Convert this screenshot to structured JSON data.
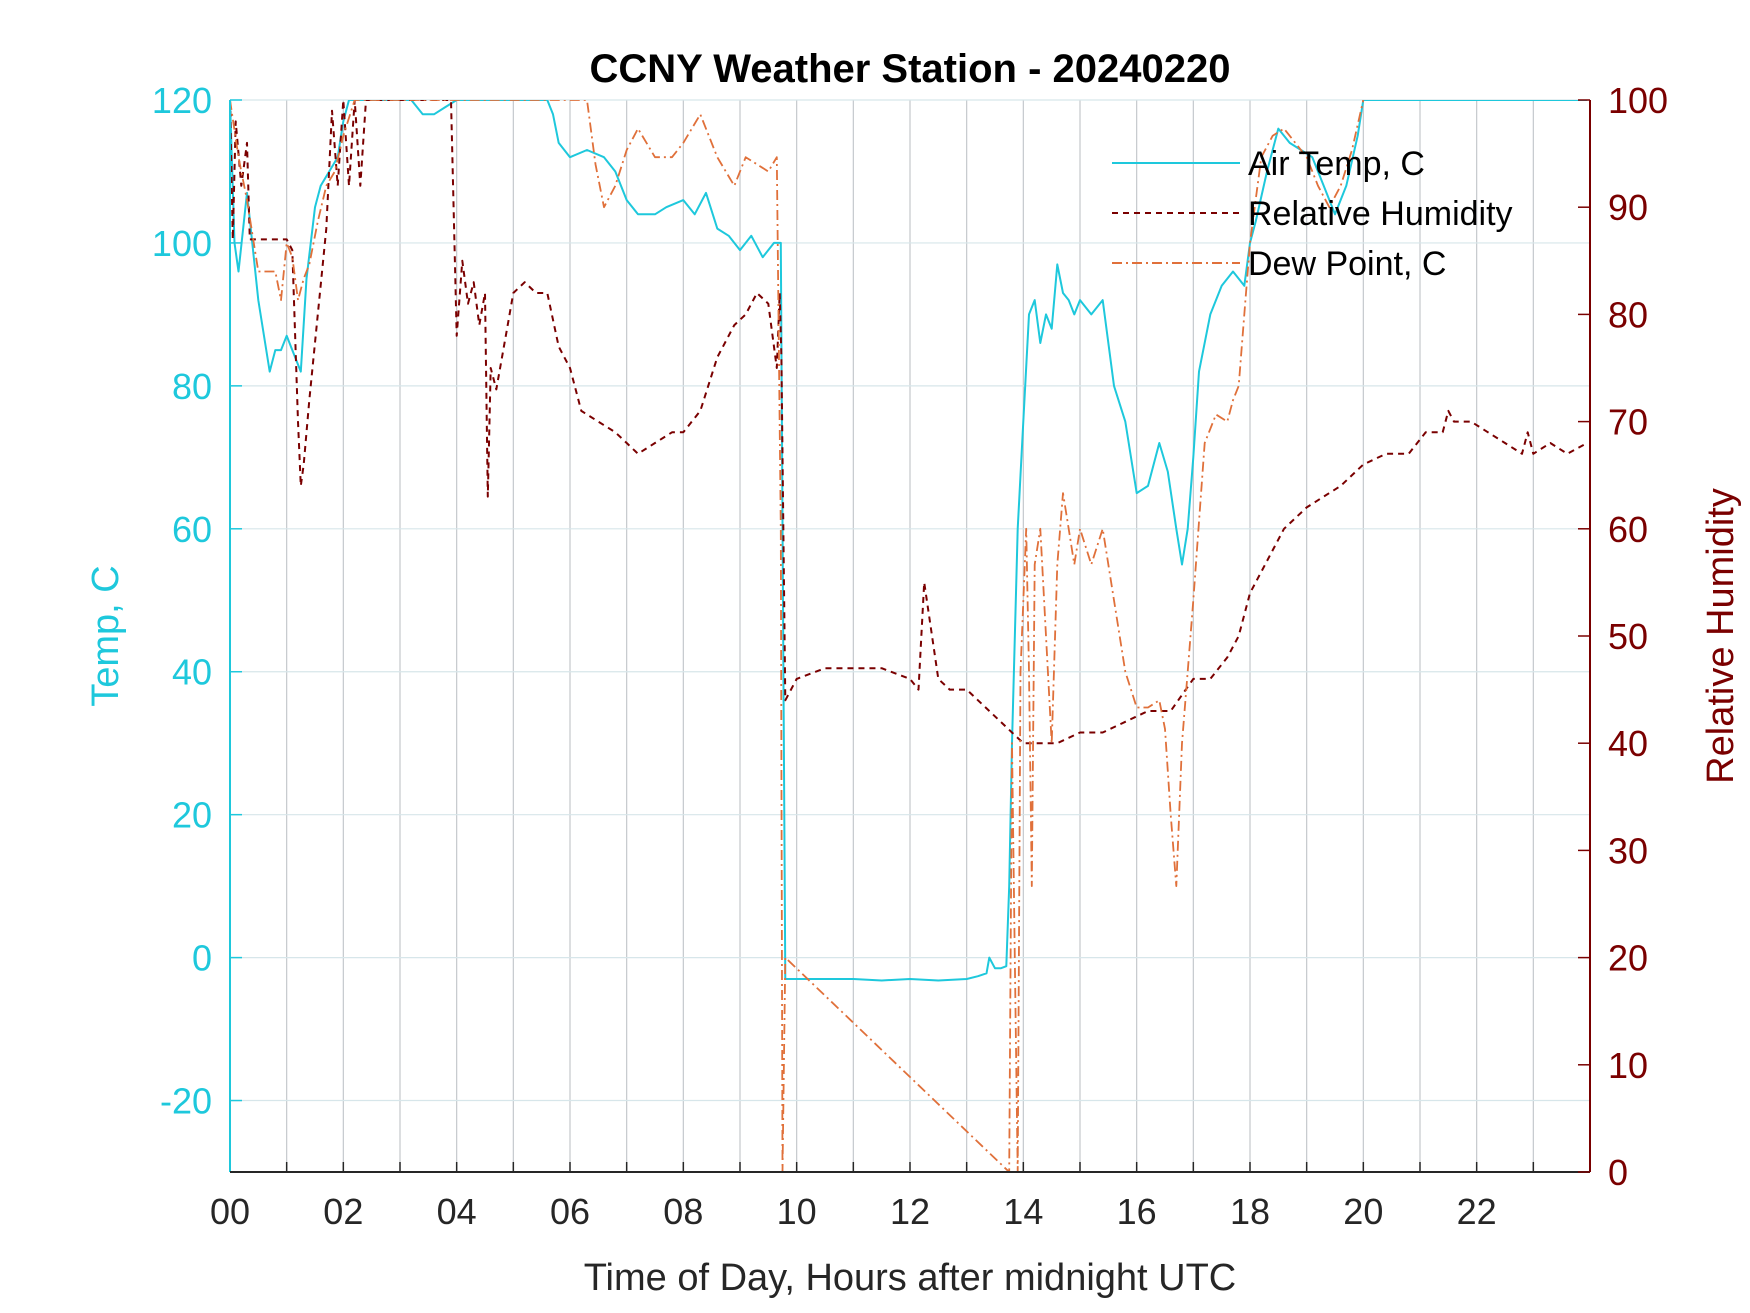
{
  "chart_data": {
    "type": "line",
    "title": "CCNY Weather Station - 20240220",
    "xlabel": "Time of Day, Hours after midnight UTC",
    "ylabel_left": "Temp, C",
    "ylabel_right": "Relative Humidity",
    "xlim": [
      0,
      24
    ],
    "ylim_left": [
      -30,
      120
    ],
    "ylim_right": [
      0,
      100
    ],
    "x_ticks": [
      0,
      2,
      4,
      6,
      8,
      10,
      12,
      14,
      16,
      18,
      20,
      22
    ],
    "x_tick_labels": [
      "00",
      "02",
      "04",
      "06",
      "08",
      "10",
      "12",
      "14",
      "16",
      "18",
      "20",
      "22"
    ],
    "y_left_ticks": [
      -20,
      0,
      20,
      40,
      60,
      80,
      100,
      120
    ],
    "y_left_tick_labels": [
      "-20",
      "0",
      "20",
      "40",
      "60",
      "80",
      "100",
      "120"
    ],
    "y_right_ticks": [
      0,
      10,
      20,
      30,
      40,
      50,
      60,
      70,
      80,
      90,
      100
    ],
    "y_right_tick_labels": [
      "0",
      "10",
      "20",
      "30",
      "40",
      "50",
      "60",
      "70",
      "80",
      "90",
      "100"
    ],
    "grid": true,
    "legend_position": "top-right",
    "colors": {
      "air_temp": "#1ec8dc",
      "humidity": "#7a0000",
      "dew_point": "#e0703a",
      "axis_left": "#1ec8dc",
      "axis_right": "#7a0000",
      "grid": "#d7e6ea"
    },
    "series": [
      {
        "name": "Air Temp, C",
        "axis": "left",
        "style": "solid",
        "x": [
          0,
          0.08,
          0.15,
          0.3,
          0.5,
          0.7,
          0.8,
          0.9,
          1.0,
          1.1,
          1.25,
          1.35,
          1.5,
          1.6,
          1.75,
          1.9,
          2.0,
          2.1,
          2.2,
          2.35,
          2.6,
          3.0,
          3.2,
          3.4,
          3.6,
          3.8,
          4.0,
          4.3,
          5.0,
          5.5,
          5.6,
          5.7,
          5.8,
          6.0,
          6.3,
          6.6,
          6.8,
          7.0,
          7.2,
          7.5,
          7.7,
          8.0,
          8.2,
          8.4,
          8.6,
          8.8,
          9.0,
          9.2,
          9.4,
          9.6,
          9.72,
          9.8,
          10.0,
          10.5,
          11.0,
          11.5,
          12.0,
          12.5,
          13.0,
          13.2,
          13.35,
          13.4,
          13.5,
          13.6,
          13.7,
          13.75,
          13.8,
          13.9,
          14.0,
          14.1,
          14.2,
          14.3,
          14.4,
          14.5,
          14.6,
          14.7,
          14.8,
          14.9,
          15.0,
          15.2,
          15.4,
          15.6,
          15.8,
          16.0,
          16.2,
          16.4,
          16.55,
          16.7,
          16.8,
          16.9,
          17.0,
          17.1,
          17.3,
          17.5,
          17.7,
          17.9,
          18.0,
          18.1,
          18.3,
          18.5,
          18.7,
          18.9,
          19.1,
          19.3,
          19.5,
          19.7,
          19.9,
          20.0,
          22.8,
          23.95
        ],
        "values": [
          120,
          100,
          96,
          107,
          92,
          82,
          85,
          85,
          87,
          85,
          82,
          95,
          105,
          108,
          110,
          112,
          117,
          120,
          120,
          120,
          120,
          120,
          120,
          118,
          118,
          119,
          120,
          120,
          120,
          120,
          120,
          118,
          114,
          112,
          113,
          112,
          110,
          106,
          104,
          104,
          105,
          106,
          104,
          107,
          102,
          101,
          99,
          101,
          98,
          100,
          100,
          -3,
          -3,
          -3,
          -3,
          -3.2,
          -3,
          -3.2,
          -3,
          -2.6,
          -2.2,
          0,
          -1.5,
          -1.5,
          -1.2,
          10,
          30,
          60,
          75,
          90,
          92,
          86,
          90,
          88,
          97,
          93,
          92,
          90,
          92,
          90,
          92,
          80,
          75,
          65,
          66,
          72,
          68,
          60,
          55,
          60,
          70,
          82,
          90,
          94,
          96,
          94,
          100,
          103,
          110,
          116,
          114,
          113,
          112,
          108,
          104,
          108,
          115,
          120,
          120,
          120
        ]
      },
      {
        "name": "Relative Humidity",
        "axis": "right",
        "style": "dashed",
        "x": [
          0,
          0.05,
          0.1,
          0.2,
          0.3,
          0.35,
          0.5,
          0.8,
          1.0,
          1.1,
          1.2,
          1.25,
          1.3,
          1.4,
          1.55,
          1.7,
          1.8,
          1.9,
          2.0,
          2.1,
          2.2,
          2.3,
          2.4,
          2.5,
          3.9,
          4.0,
          4.1,
          4.2,
          4.3,
          4.4,
          4.5,
          4.55,
          4.6,
          4.7,
          4.9,
          5.0,
          5.2,
          5.4,
          5.6,
          5.8,
          6.0,
          6.2,
          6.5,
          6.8,
          7.0,
          7.2,
          7.5,
          7.8,
          8.0,
          8.3,
          8.6,
          8.9,
          9.1,
          9.3,
          9.5,
          9.65,
          9.7,
          9.73,
          9.8,
          10.0,
          10.5,
          11.0,
          11.5,
          12.0,
          12.15,
          12.25,
          12.5,
          12.7,
          12.8,
          13.0,
          13.2,
          13.4,
          13.6,
          13.8,
          14.0,
          14.3,
          14.6,
          15.0,
          15.4,
          15.8,
          16.2,
          16.6,
          17.0,
          17.3,
          17.6,
          17.8,
          18.0,
          18.3,
          18.6,
          19.0,
          19.3,
          19.6,
          20.0,
          20.4,
          20.8,
          21.1,
          21.4,
          21.5,
          21.6,
          21.9,
          22.2,
          22.5,
          22.8,
          22.9,
          23.0,
          23.3,
          23.6,
          23.95
        ],
        "values": [
          100,
          87,
          98,
          92,
          96,
          87,
          87,
          87,
          87,
          86,
          70,
          64,
          66,
          72,
          80,
          88,
          99,
          92,
          100,
          92,
          100,
          92,
          100,
          100,
          100,
          78,
          85,
          81,
          83,
          79,
          82,
          63,
          75,
          73,
          79,
          82,
          83,
          82,
          82,
          77,
          75,
          71,
          70,
          69,
          68,
          67,
          68,
          69,
          69,
          71,
          76,
          79,
          80,
          82,
          81,
          75,
          82,
          76,
          44,
          46,
          47,
          47,
          47,
          46,
          45,
          55,
          46,
          45,
          45,
          45,
          44,
          43,
          42,
          41,
          40,
          40,
          40,
          41,
          41,
          42,
          43,
          43,
          46,
          46,
          48,
          50,
          54,
          57,
          60,
          62,
          63,
          64,
          66,
          67,
          67,
          69,
          69,
          71,
          70,
          70,
          69,
          68,
          67,
          69,
          67,
          68,
          67,
          68
        ]
      },
      {
        "name": "Dew Point, C",
        "axis": "left",
        "style": "dashdot",
        "x": [
          0,
          0.15,
          0.3,
          0.5,
          0.8,
          0.9,
          1.0,
          1.1,
          1.2,
          1.3,
          1.4,
          1.55,
          1.7,
          1.85,
          2.0,
          2.2,
          6.3,
          6.45,
          6.6,
          6.8,
          7.0,
          7.2,
          7.5,
          7.8,
          8.0,
          8.3,
          8.6,
          8.9,
          9.1,
          9.3,
          9.5,
          9.65,
          9.72,
          9.75,
          9.8,
          13.75,
          13.8,
          13.85,
          13.9,
          13.95,
          14.05,
          14.1,
          14.15,
          14.2,
          14.3,
          14.4,
          14.5,
          14.6,
          14.7,
          14.8,
          14.9,
          15.0,
          15.2,
          15.4,
          15.6,
          15.8,
          16.0,
          16.2,
          16.4,
          16.5,
          16.6,
          16.7,
          16.8,
          16.9,
          17.0,
          17.2,
          17.4,
          17.6,
          17.7,
          17.8,
          17.9,
          18.0,
          18.2,
          18.4,
          18.6,
          18.8,
          19.0,
          19.2,
          19.4,
          19.6,
          19.8,
          20.0
        ],
        "values": [
          120,
          112,
          106,
          96,
          96,
          92,
          100,
          98,
          92,
          95,
          97,
          103,
          108,
          110,
          115,
          120,
          120,
          111,
          105,
          108,
          113,
          116,
          112,
          112,
          114,
          118,
          112,
          108,
          112,
          111,
          110,
          112,
          60,
          -30,
          0,
          -30,
          30,
          0,
          -30,
          40,
          60,
          40,
          10,
          55,
          60,
          45,
          30,
          55,
          65,
          60,
          55,
          60,
          55,
          60,
          50,
          40,
          35,
          35,
          36,
          32,
          20,
          10,
          30,
          40,
          50,
          72,
          76,
          75,
          78,
          80,
          90,
          100,
          112,
          115,
          116,
          114,
          112,
          108,
          105,
          108,
          113,
          120
        ]
      }
    ]
  }
}
